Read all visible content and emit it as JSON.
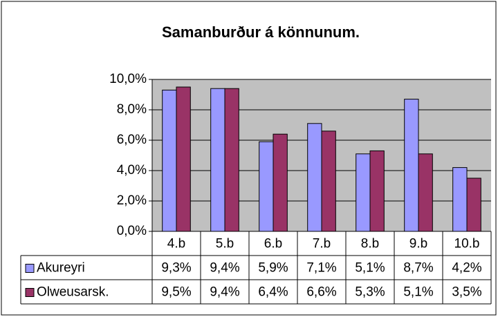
{
  "chart_data": {
    "type": "bar",
    "title": "Samanburður á könnunum.",
    "categories": [
      "4.b",
      "5.b",
      "6.b",
      "7.b",
      "8.b",
      "9.b",
      "10.b"
    ],
    "series": [
      {
        "name": "Akureyri",
        "color": "#9999ff",
        "values": [
          9.3,
          9.4,
          5.9,
          7.1,
          5.1,
          8.7,
          4.2
        ],
        "value_labels": [
          "9,3%",
          "9,4%",
          "5,9%",
          "7,1%",
          "5,1%",
          "8,7%",
          "4,2%"
        ]
      },
      {
        "name": "Olweusarsk.",
        "color": "#993366",
        "values": [
          9.5,
          9.4,
          6.4,
          6.6,
          5.3,
          5.1,
          3.5
        ],
        "value_labels": [
          "9,5%",
          "9,4%",
          "6,4%",
          "6,6%",
          "5,3%",
          "5,1%",
          "3,5%"
        ]
      }
    ],
    "ylim": [
      0,
      10
    ],
    "yticks": [
      {
        "value": 0,
        "label": "0,0%"
      },
      {
        "value": 2,
        "label": "2,0%"
      },
      {
        "value": 4,
        "label": "4,0%"
      },
      {
        "value": 6,
        "label": "6,0%"
      },
      {
        "value": 8,
        "label": "8,0%"
      },
      {
        "value": 10,
        "label": "10,0%"
      }
    ],
    "grid": true,
    "plot_background": "#c0c0c0"
  }
}
